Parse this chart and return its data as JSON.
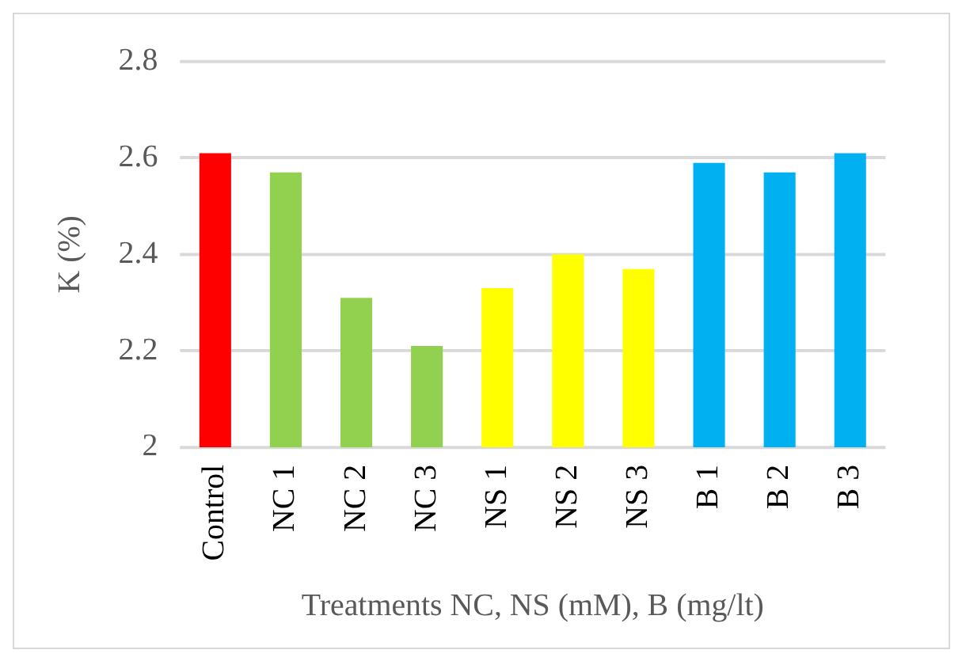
{
  "chart_data": {
    "type": "bar",
    "xlabel": "Treatments NC, NS (mM), B (mg/lt)",
    "ylabel": "K (%)",
    "categories": [
      "Control",
      "NC 1",
      "NC 2",
      "NC 3",
      "NS 1",
      "NS 2",
      "NS 3",
      "B 1",
      "B 2",
      "B 3"
    ],
    "values": [
      2.61,
      2.57,
      2.31,
      2.21,
      2.33,
      2.4,
      2.37,
      2.59,
      2.57,
      2.61
    ],
    "colors": [
      "#ff0000",
      "#92d050",
      "#92d050",
      "#92d050",
      "#ffff00",
      "#ffff00",
      "#ffff00",
      "#00b0f0",
      "#00b0f0",
      "#00b0f0"
    ],
    "ylim": [
      2,
      2.8
    ],
    "yticks": [
      2,
      2.2,
      2.4,
      2.6,
      2.8
    ],
    "grid": "y",
    "legend": false
  }
}
